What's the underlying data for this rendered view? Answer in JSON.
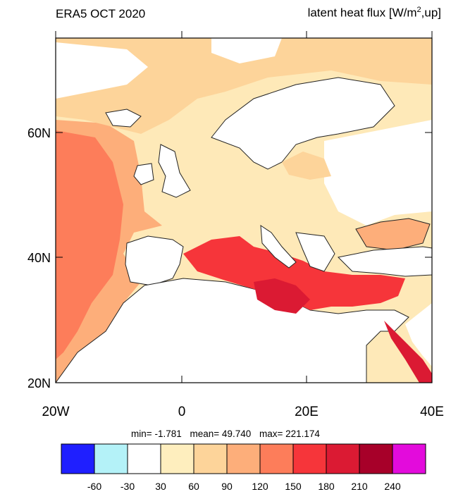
{
  "title_left": "ERA5 OCT 2020",
  "title_right": {
    "prefix": "latent heat flux [W/m",
    "superscript": "2",
    "suffix": ",up]"
  },
  "axes": {
    "lat_labels": [
      "60N",
      "40N",
      "20N"
    ],
    "lon_labels": [
      "20W",
      "0",
      "20E",
      "40E"
    ],
    "lon_range": [
      -20,
      40
    ],
    "lat_range": [
      20,
      74
    ]
  },
  "stats": {
    "min_label": "min=",
    "min_value": "-1.781",
    "mean_label": "mean=",
    "mean_value": "49.740",
    "max_label": "max=",
    "max_value": "221.174"
  },
  "colorbar": {
    "colors": [
      "#1f1fff",
      "#b4f2f8",
      "#ffffff",
      "#feeebe",
      "#fdd49a",
      "#fdae7a",
      "#fd7d5a",
      "#f6353a",
      "#db1a33",
      "#a70029",
      "#e30bdc"
    ],
    "tick_labels": [
      "-60",
      "-30",
      "30",
      "60",
      "90",
      "120",
      "150",
      "180",
      "210",
      "240"
    ]
  },
  "map": {
    "ocean_flux_color": "#fd7d5a",
    "land_flux_color": "#feeebe"
  }
}
